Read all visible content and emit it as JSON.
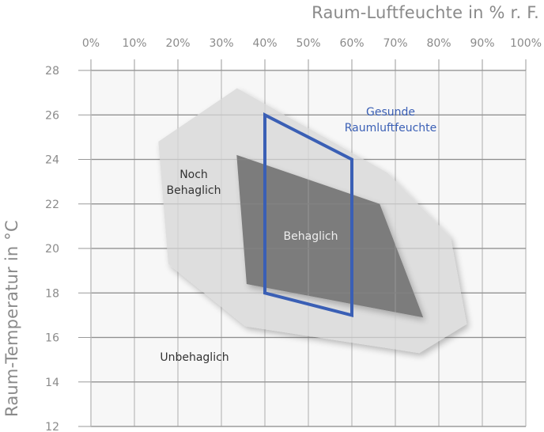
{
  "chart_data": {
    "type": "area",
    "title": "",
    "xlabel": "Raum-Luftfeuchte in % r. F.",
    "ylabel": "Raum-Temperatur in °C",
    "x_ticks": [
      "0%",
      "10%",
      "20%",
      "30%",
      "40%",
      "50%",
      "60%",
      "70%",
      "80%",
      "90%",
      "100%"
    ],
    "y_ticks": [
      "28",
      "26",
      "24",
      "22",
      "20",
      "18",
      "16",
      "14",
      "12"
    ],
    "xlim": [
      0,
      100
    ],
    "ylim": [
      12,
      28
    ],
    "grid": true,
    "x_axis_position": "top",
    "regions": [
      {
        "name": "Noch Behaglich",
        "color": "#dedede",
        "polygon": [
          [
            33.6,
            27.2
          ],
          [
            15.5,
            24.8
          ],
          [
            17.8,
            19.3
          ],
          [
            35.5,
            16.5
          ],
          [
            75.5,
            15.3
          ],
          [
            86.4,
            16.6
          ],
          [
            82.7,
            20.5
          ],
          [
            68.2,
            23.4
          ]
        ]
      },
      {
        "name": "Behaglich",
        "color": "#7b7b7b",
        "polygon": [
          [
            33.5,
            24.2
          ],
          [
            66.4,
            22.0
          ],
          [
            76.4,
            16.9
          ],
          [
            35.8,
            18.4
          ]
        ]
      },
      {
        "name": "Gesunde Raumluftfeuchte",
        "color": "#3a5fb5",
        "outline_only": true,
        "polygon": [
          [
            40,
            26
          ],
          [
            60,
            24
          ],
          [
            60,
            17
          ],
          [
            40,
            18
          ]
        ]
      }
    ],
    "annotations": [
      {
        "text": "Noch\nBehaglich",
        "x": 22,
        "y": 23.3
      },
      {
        "text": "Behaglich",
        "x": 50.5,
        "y": 20.7
      },
      {
        "text": "Unbehaglich",
        "x": 19,
        "y": 15.1
      },
      {
        "text": "Gesunde\nRaumluftfeuchte",
        "x": 69,
        "y": 25.5
      }
    ]
  },
  "labels": {
    "x_title": "Raum-Luftfeuchte in % r. F.",
    "y_title": "Raum-Temperatur in °C",
    "noch_1": "Noch",
    "noch_2": "Behaglich",
    "behaglich": "Behaglich",
    "unbehaglich": "Unbehaglich",
    "gesunde_1": "Gesunde",
    "gesunde_2": "Raumluftfeuchte"
  },
  "colors": {
    "plot_bg": "#f7f7f7",
    "grid": "#9a9a9a",
    "tick_text": "#8a8a8a",
    "outer_region": "#dedede",
    "inner_region": "#7b7b7b",
    "healthy_outline": "#3a5fb5",
    "label_dark": "#333333",
    "label_light": "#eeeeee"
  }
}
